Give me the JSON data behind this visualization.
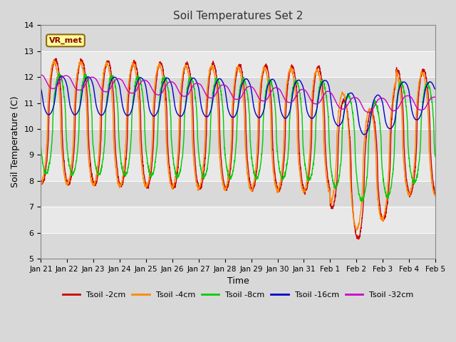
{
  "title": "Soil Temperatures Set 2",
  "xlabel": "Time",
  "ylabel": "Soil Temperature (C)",
  "ylim": [
    5.0,
    14.0
  ],
  "yticks": [
    5.0,
    6.0,
    7.0,
    8.0,
    9.0,
    10.0,
    11.0,
    12.0,
    13.0,
    14.0
  ],
  "annotation_label": "VR_met",
  "series": [
    {
      "label": "Tsoil -2cm",
      "color": "#cc0000",
      "lw": 1.0
    },
    {
      "label": "Tsoil -4cm",
      "color": "#ff8800",
      "lw": 1.0
    },
    {
      "label": "Tsoil -8cm",
      "color": "#00cc00",
      "lw": 1.0
    },
    {
      "label": "Tsoil -16cm",
      "color": "#0000cc",
      "lw": 1.0
    },
    {
      "label": "Tsoil -32cm",
      "color": "#cc00cc",
      "lw": 1.0
    }
  ],
  "bg_color": "#d8d8d8",
  "plot_bg_color": "#e8e8e8",
  "grid_color": "#ffffff",
  "xtick_labels": [
    "Jan 21",
    "Jan 22",
    "Jan 23",
    "Jan 24",
    "Jan 25",
    "Jan 26",
    "Jan 27",
    "Jan 28",
    "Jan 29",
    "Jan 30",
    "Jan 31",
    "Feb 1",
    "Feb 2",
    "Feb 3",
    "Feb 4",
    "Feb 5"
  ]
}
